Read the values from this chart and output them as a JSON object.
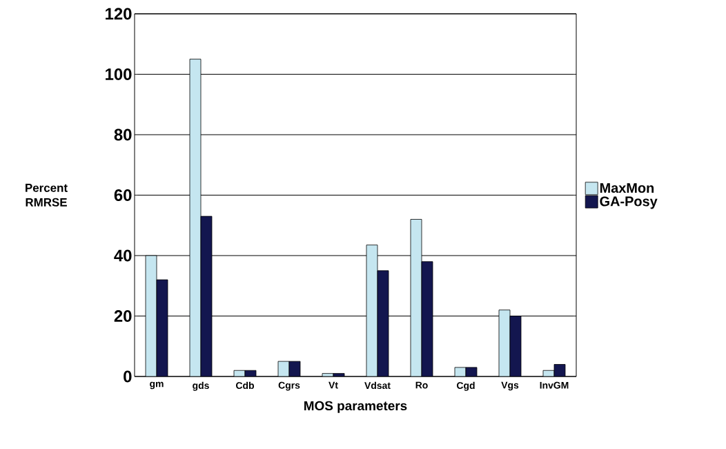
{
  "chart_data": {
    "type": "bar",
    "xlabel": "MOS parameters",
    "ylabel": "Percent RMRSE",
    "categories": [
      "gm",
      "gds",
      "Cdb",
      "Cgrs",
      "Vt",
      "Vdsat",
      "Ro",
      "Cgd",
      "Vgs",
      "InvGM"
    ],
    "series": [
      {
        "name": "MaxMon",
        "color": "#c5e6f0",
        "values": [
          40,
          105,
          2,
          5,
          1,
          43.5,
          52,
          3,
          22,
          2
        ]
      },
      {
        "name": "GA-Posy",
        "color": "#13164f",
        "values": [
          32,
          53,
          2,
          5,
          1,
          35,
          38,
          3,
          20,
          4
        ]
      }
    ],
    "ylim": [
      0,
      120
    ],
    "yticks": [
      0,
      20,
      40,
      60,
      80,
      100,
      120
    ],
    "grid": "y",
    "legend": "right"
  }
}
